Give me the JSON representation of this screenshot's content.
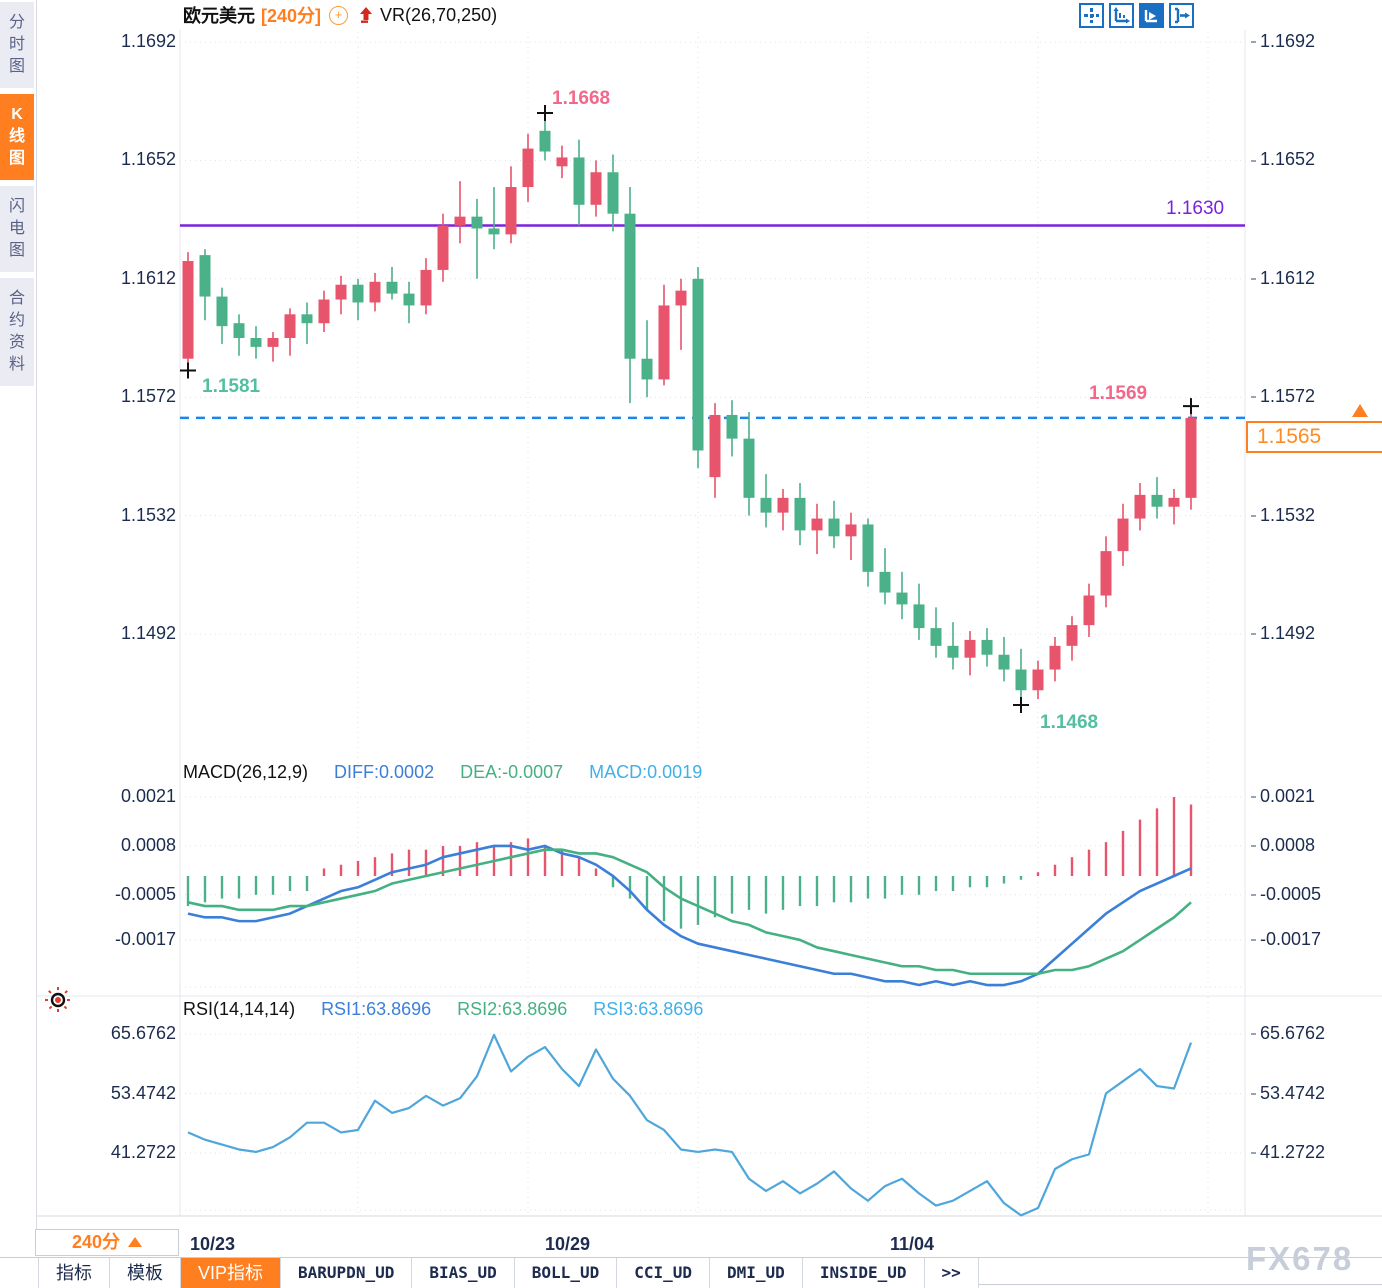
{
  "header": {
    "symbol": "欧元美元",
    "period": "[240分]",
    "study": "VR(26,70,250)"
  },
  "sidebar": {
    "items": [
      {
        "label": "分时图",
        "active": false
      },
      {
        "label": "K线图",
        "active": true
      },
      {
        "label": "闪电图",
        "active": false
      },
      {
        "label": "合约资料",
        "active": false
      }
    ]
  },
  "macd_header": {
    "title": "MACD(26,12,9)",
    "diff": "DIFF:0.0002",
    "dea": "DEA:-0.0007",
    "macd": "MACD:0.0019"
  },
  "rsi_header": {
    "title": "RSI(14,14,14)",
    "rsi1": "RSI1:63.8696",
    "rsi2": "RSI2:63.8696",
    "rsi3": "RSI3:63.8696"
  },
  "annotations": {
    "start_low": "1.1581",
    "swing_high": "1.1668",
    "recent_high": "1.1569",
    "swing_low": "1.1468",
    "hline_label": "1.1630",
    "current_price": "1.1565"
  },
  "bottom": {
    "period_label": "240分",
    "dates": [
      "10/23",
      "10/29",
      "11/04"
    ],
    "tabs": [
      {
        "label": "指标",
        "active": false
      },
      {
        "label": "模板",
        "active": false
      },
      {
        "label": "VIP指标",
        "active": true
      },
      {
        "label": "BARUPDN_UD",
        "active": false
      },
      {
        "label": "BIAS_UD",
        "active": false
      },
      {
        "label": "BOLL_UD",
        "active": false
      },
      {
        "label": "CCI_UD",
        "active": false
      },
      {
        "label": "DMI_UD",
        "active": false
      },
      {
        "label": "INSIDE_UD",
        "active": false
      },
      {
        "label": ">>",
        "active": false
      }
    ]
  },
  "watermark": "FX678",
  "colors": {
    "up": "#e8546b",
    "down": "#4bb189",
    "support_line": "#7b22dd",
    "price_dash": "#1d86ec",
    "accent_orange": "#ff7e1f",
    "diff_line": "#3b7fd9",
    "dea_line": "#45b183",
    "rsi_line": "#4fa6db",
    "grid": "#dde1ec",
    "axis_text": "#1c2b4e"
  },
  "chart_data": [
    {
      "type": "candlestick",
      "title": "欧元美元 240分",
      "y_ticks": [
        "1.1692",
        "1.1652",
        "1.1612",
        "1.1572",
        "1.1532",
        "1.1492"
      ],
      "ylim": [
        1.1452,
        1.1696
      ],
      "x_dates": [
        "10/23",
        "10/29",
        "11/04"
      ],
      "support_line": 1.163,
      "current_price": 1.1565,
      "markers": [
        {
          "bar": 0,
          "price": 1.1581,
          "at": "low"
        },
        {
          "bar": 21,
          "price": 1.1668,
          "at": "high"
        },
        {
          "bar": 49,
          "price": 1.1468,
          "at": "low"
        },
        {
          "bar": 59,
          "price": 1.1569,
          "at": "high"
        }
      ],
      "candles": [
        [
          1.1585,
          1.1621,
          1.1581,
          1.1618
        ],
        [
          1.162,
          1.1622,
          1.1598,
          1.1606
        ],
        [
          1.1606,
          1.1609,
          1.159,
          1.1596
        ],
        [
          1.1597,
          1.16,
          1.1586,
          1.1592
        ],
        [
          1.1592,
          1.1596,
          1.1585,
          1.1589
        ],
        [
          1.1589,
          1.1594,
          1.1584,
          1.1592
        ],
        [
          1.1592,
          1.1602,
          1.1586,
          1.16
        ],
        [
          1.16,
          1.1604,
          1.159,
          1.1597
        ],
        [
          1.1597,
          1.1608,
          1.1594,
          1.1605
        ],
        [
          1.1605,
          1.1613,
          1.16,
          1.161
        ],
        [
          1.161,
          1.1612,
          1.1598,
          1.1604
        ],
        [
          1.1604,
          1.1614,
          1.1601,
          1.1611
        ],
        [
          1.1611,
          1.1616,
          1.1605,
          1.1607
        ],
        [
          1.1607,
          1.1611,
          1.1597,
          1.1603
        ],
        [
          1.1603,
          1.1619,
          1.16,
          1.1615
        ],
        [
          1.1615,
          1.1634,
          1.1611,
          1.163
        ],
        [
          1.163,
          1.1645,
          1.1624,
          1.1633
        ],
        [
          1.1633,
          1.1639,
          1.1612,
          1.1629
        ],
        [
          1.1629,
          1.1643,
          1.1622,
          1.1627
        ],
        [
          1.1627,
          1.165,
          1.1624,
          1.1643
        ],
        [
          1.1643,
          1.1661,
          1.1638,
          1.1656
        ],
        [
          1.1662,
          1.1668,
          1.1652,
          1.1655
        ],
        [
          1.165,
          1.1657,
          1.1646,
          1.1653
        ],
        [
          1.1653,
          1.1659,
          1.163,
          1.1637
        ],
        [
          1.1637,
          1.1652,
          1.1633,
          1.1648
        ],
        [
          1.1648,
          1.1654,
          1.1628,
          1.1634
        ],
        [
          1.1634,
          1.1643,
          1.157,
          1.1585
        ],
        [
          1.1585,
          1.1598,
          1.1572,
          1.1578
        ],
        [
          1.1578,
          1.161,
          1.1576,
          1.1603
        ],
        [
          1.1603,
          1.1612,
          1.1588,
          1.1608
        ],
        [
          1.1612,
          1.1616,
          1.1548,
          1.1554
        ],
        [
          1.1545,
          1.157,
          1.1538,
          1.1566
        ],
        [
          1.1566,
          1.1571,
          1.1552,
          1.1558
        ],
        [
          1.1558,
          1.1567,
          1.1532,
          1.1538
        ],
        [
          1.1538,
          1.1546,
          1.1528,
          1.1533
        ],
        [
          1.1533,
          1.1541,
          1.1527,
          1.1538
        ],
        [
          1.1538,
          1.1543,
          1.1522,
          1.1527
        ],
        [
          1.1527,
          1.1536,
          1.1519,
          1.1531
        ],
        [
          1.1531,
          1.1537,
          1.1521,
          1.1525
        ],
        [
          1.1525,
          1.1533,
          1.1517,
          1.1529
        ],
        [
          1.1529,
          1.1531,
          1.1508,
          1.1513
        ],
        [
          1.1513,
          1.1521,
          1.1502,
          1.1506
        ],
        [
          1.1506,
          1.1513,
          1.1497,
          1.1502
        ],
        [
          1.1502,
          1.1509,
          1.149,
          1.1494
        ],
        [
          1.1494,
          1.1501,
          1.1484,
          1.1488
        ],
        [
          1.1488,
          1.1496,
          1.148,
          1.1484
        ],
        [
          1.1484,
          1.1493,
          1.1478,
          1.149
        ],
        [
          1.149,
          1.1494,
          1.1481,
          1.1485
        ],
        [
          1.1485,
          1.1491,
          1.1476,
          1.148
        ],
        [
          1.148,
          1.1487,
          1.1468,
          1.1473
        ],
        [
          1.1473,
          1.1483,
          1.147,
          1.148
        ],
        [
          1.148,
          1.1491,
          1.1476,
          1.1488
        ],
        [
          1.1488,
          1.1498,
          1.1483,
          1.1495
        ],
        [
          1.1495,
          1.1509,
          1.1491,
          1.1505
        ],
        [
          1.1505,
          1.1525,
          1.1501,
          1.152
        ],
        [
          1.152,
          1.1536,
          1.1515,
          1.1531
        ],
        [
          1.1531,
          1.1543,
          1.1527,
          1.1539
        ],
        [
          1.1539,
          1.1545,
          1.1531,
          1.1535
        ],
        [
          1.1535,
          1.1541,
          1.1529,
          1.1538
        ],
        [
          1.1538,
          1.1569,
          1.1534,
          1.1565
        ]
      ]
    },
    {
      "type": "bar",
      "name": "MACD",
      "y_ticks": [
        "0.0021",
        "0.0008",
        "-0.0005",
        "-0.0017"
      ],
      "histogram": [
        -0.0008,
        -0.0007,
        -0.0006,
        -0.0006,
        -0.0005,
        -0.0005,
        -0.0004,
        -0.0004,
        0.0002,
        0.0003,
        0.0004,
        0.0005,
        0.0006,
        0.0007,
        0.0007,
        0.0008,
        0.0008,
        0.0009,
        0.0008,
        0.0009,
        0.001,
        0.0008,
        0.0007,
        0.0005,
        0.0002,
        -0.0003,
        -0.0006,
        -0.0009,
        -0.0012,
        -0.0014,
        -0.0013,
        -0.0011,
        -0.001,
        -0.0009,
        -0.001,
        -0.0009,
        -0.0008,
        -0.0008,
        -0.0007,
        -0.0007,
        -0.0006,
        -0.0006,
        -0.0005,
        -0.0005,
        -0.0004,
        -0.0004,
        -0.0003,
        -0.0003,
        -0.0002,
        -0.0001,
        0.0001,
        0.0003,
        0.0005,
        0.0007,
        0.0009,
        0.0012,
        0.0015,
        0.0018,
        0.0021,
        0.0019
      ],
      "diff": [
        -0.001,
        -0.0011,
        -0.0011,
        -0.0012,
        -0.0012,
        -0.0011,
        -0.001,
        -0.0008,
        -0.0006,
        -0.0004,
        -0.0003,
        -0.0001,
        0.0001,
        0.0002,
        0.0003,
        0.0005,
        0.0006,
        0.0007,
        0.0008,
        0.0008,
        0.0007,
        0.0008,
        0.0006,
        0.0005,
        0.0003,
        0.0,
        -0.0004,
        -0.0009,
        -0.0013,
        -0.0016,
        -0.0018,
        -0.0019,
        -0.002,
        -0.0021,
        -0.0022,
        -0.0023,
        -0.0024,
        -0.0025,
        -0.0026,
        -0.0026,
        -0.0027,
        -0.0028,
        -0.0028,
        -0.0029,
        -0.0028,
        -0.0029,
        -0.0028,
        -0.0029,
        -0.0029,
        -0.0028,
        -0.0026,
        -0.0022,
        -0.0018,
        -0.0014,
        -0.001,
        -0.0007,
        -0.0004,
        -0.0002,
        0.0,
        0.0002
      ],
      "dea": [
        -0.0007,
        -0.0008,
        -0.0008,
        -0.0009,
        -0.0009,
        -0.0009,
        -0.0008,
        -0.0008,
        -0.0007,
        -0.0006,
        -0.0005,
        -0.0004,
        -0.0002,
        -0.0001,
        0.0,
        0.0001,
        0.0002,
        0.0003,
        0.0004,
        0.0005,
        0.0006,
        0.0007,
        0.0007,
        0.0006,
        0.0006,
        0.0005,
        0.0003,
        0.0001,
        -0.0003,
        -0.0006,
        -0.0008,
        -0.001,
        -0.0012,
        -0.0013,
        -0.0015,
        -0.0016,
        -0.0017,
        -0.0019,
        -0.002,
        -0.0021,
        -0.0022,
        -0.0023,
        -0.0024,
        -0.0024,
        -0.0025,
        -0.0025,
        -0.0026,
        -0.0026,
        -0.0026,
        -0.0026,
        -0.0026,
        -0.0025,
        -0.0025,
        -0.0024,
        -0.0022,
        -0.002,
        -0.0017,
        -0.0014,
        -0.0011,
        -0.0007
      ]
    },
    {
      "type": "line",
      "name": "RSI",
      "y_ticks": [
        "65.6762",
        "53.4742",
        "41.2722"
      ],
      "values": [
        45.5,
        44,
        43,
        42,
        41.5,
        42.5,
        44.5,
        47.5,
        47.5,
        45.5,
        46,
        52,
        49.5,
        50.5,
        53,
        51,
        52.5,
        57,
        65.5,
        58,
        61,
        63,
        58.5,
        55,
        62.5,
        56.5,
        53,
        48,
        46,
        42,
        41.5,
        42,
        41.5,
        36,
        33.5,
        35.5,
        33,
        35,
        37.5,
        34,
        31.5,
        34.5,
        36,
        33,
        30.5,
        31.5,
        33.5,
        35.5,
        31,
        28.5,
        30,
        38,
        40,
        41,
        53.5,
        56,
        58.5,
        55,
        54.5,
        63.9
      ]
    }
  ]
}
